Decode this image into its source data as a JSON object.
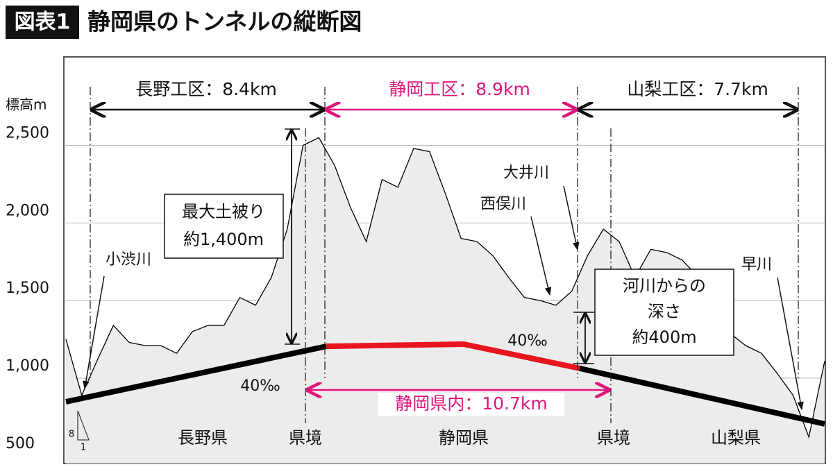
{
  "chart_data": {
    "type": "profile",
    "badge": "図表1",
    "title": "静岡県のトンネルの縦断図",
    "ylabel": "標高m",
    "ylim": [
      450,
      3070
    ],
    "yticks": [
      500,
      {
        "value": 1000,
        "label": "1,000"
      },
      {
        "value": 1500,
        "label": "1,500"
      },
      {
        "value": 2000,
        "label": "2,000"
      },
      {
        "value": 2500,
        "label": "2,500"
      }
    ],
    "grid": true,
    "terrain": {
      "color": "#000000",
      "fill": "#ececec",
      "values": [
        1250,
        890,
        1120,
        1340,
        1230,
        1210,
        1210,
        1160,
        1300,
        1340,
        1340,
        1520,
        1470,
        1650,
        1960,
        2500,
        2550,
        2370,
        2100,
        1880,
        2280,
        2230,
        2480,
        2460,
        2190,
        1900,
        1880,
        1790,
        1650,
        1520,
        1500,
        1470,
        1560,
        1790,
        1960,
        1880,
        1650,
        1830,
        1810,
        1760,
        1650,
        1430,
        1290,
        1210,
        1160,
        1030,
        890,
        620,
        1110
      ]
    },
    "tunnel": [
      {
        "color": "#000000",
        "values": [
          848,
          1205
        ]
      },
      {
        "color": "#e8141e",
        "values": [
          1205,
          1219,
          1063
        ]
      },
      {
        "color": "#000000",
        "values": [
          1063,
          705
        ]
      }
    ],
    "sections": [
      "長野工区：8.4km",
      "静岡工区：8.9km",
      "山梨工区：7.7km"
    ],
    "in_prefecture": "静岡県内：10.7km",
    "gradients": [
      "40‰",
      "40‰"
    ],
    "cover": [
      "最大土被り",
      "約1,400m"
    ],
    "depth": [
      "河川からの",
      "深さ",
      "約400m"
    ],
    "rivers": [
      "小渋川",
      "大井川",
      "西俣川",
      "早川"
    ],
    "regions": [
      "長野県",
      "県境",
      "静岡県",
      "県境",
      "山梨県"
    ],
    "slope": [
      "8",
      "1"
    ],
    "accent": "#e0157a"
  }
}
